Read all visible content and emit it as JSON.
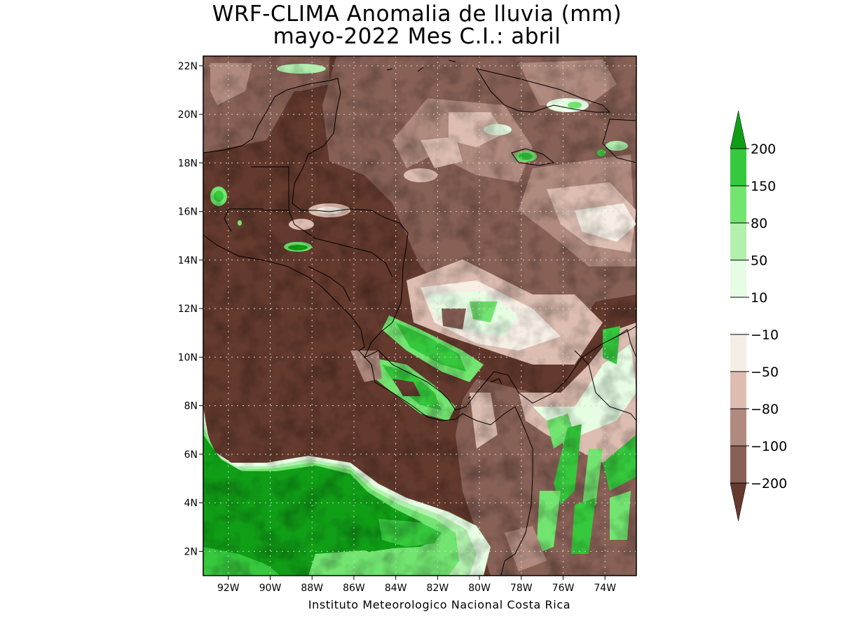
{
  "title": {
    "line1": "WRF-CLIMA Anomalia de lluvia (mm)",
    "line2": "mayo-2022 Mes C.I.: abril"
  },
  "credit": "Instituto Meteorologico Nacional Costa Rica",
  "map": {
    "lon_range": [
      -93.2,
      -72.5
    ],
    "lat_range": [
      1.0,
      22.4
    ],
    "y_ticks": [
      {
        "lat": 22,
        "label": "22N"
      },
      {
        "lat": 20,
        "label": "20N"
      },
      {
        "lat": 18,
        "label": "18N"
      },
      {
        "lat": 16,
        "label": "16N"
      },
      {
        "lat": 14,
        "label": "14N"
      },
      {
        "lat": 12,
        "label": "12N"
      },
      {
        "lat": 10,
        "label": "10N"
      },
      {
        "lat": 8,
        "label": "8N"
      },
      {
        "lat": 6,
        "label": "6N"
      },
      {
        "lat": 4,
        "label": "4N"
      },
      {
        "lat": 2,
        "label": "2N"
      }
    ],
    "x_ticks": [
      {
        "lon": -92,
        "label": "92W"
      },
      {
        "lon": -90,
        "label": "90W"
      },
      {
        "lon": -88,
        "label": "88W"
      },
      {
        "lon": -86,
        "label": "86W"
      },
      {
        "lon": -84,
        "label": "84W"
      },
      {
        "lon": -82,
        "label": "82W"
      },
      {
        "lon": -80,
        "label": "80W"
      },
      {
        "lon": -78,
        "label": "78W"
      },
      {
        "lon": -76,
        "label": "76W"
      },
      {
        "lon": -74,
        "label": "74W"
      }
    ]
  },
  "colorbar": {
    "labels": [
      "200",
      "150",
      "80",
      "50",
      "10",
      "−10",
      "−50",
      "−80",
      "−100",
      "−200"
    ],
    "bins": [
      {
        "range": "> 200",
        "color": "#109E17"
      },
      {
        "range": "150 to 200",
        "color": "#36C93D"
      },
      {
        "range": "80 to 150",
        "color": "#72E470"
      },
      {
        "range": "50 to 80",
        "color": "#B2F0AE"
      },
      {
        "range": "10 to 50",
        "color": "#E6FCE3"
      },
      {
        "range": "-10 to 10",
        "color": "#FFFFFF"
      },
      {
        "range": "-50 to -10",
        "color": "#F6EEE4"
      },
      {
        "range": "-80 to -50",
        "color": "#DDBDB1"
      },
      {
        "range": "-100 to -80",
        "color": "#B08A7E"
      },
      {
        "range": "-200 to -100",
        "color": "#876056"
      },
      {
        "range": "< -200",
        "color": "#643A2E"
      }
    ]
  }
}
